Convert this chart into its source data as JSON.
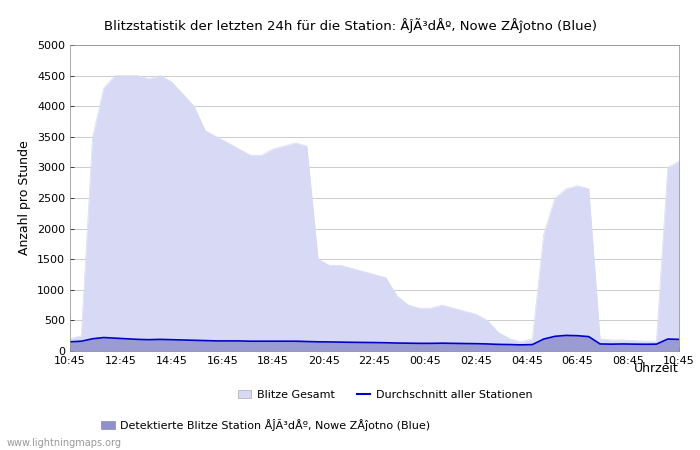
{
  "title": "Blitzstatistik der letzten 24h für die Station: ÅĴÃ³dÅº, Nowe ZÅĵotno (Blue)",
  "ylabel": "Anzahl pro Stunde",
  "xlabel": "Uhrzeit",
  "xtick_labels": [
    "10:45",
    "12:45",
    "14:45",
    "16:45",
    "18:45",
    "20:45",
    "22:45",
    "00:45",
    "02:45",
    "04:45",
    "06:45",
    "08:45",
    "10:45"
  ],
  "ytick_values": [
    0,
    500,
    1000,
    1500,
    2000,
    2500,
    3000,
    3500,
    4000,
    4500,
    5000
  ],
  "ylim": [
    0,
    5000
  ],
  "background_color": "#ffffff",
  "plot_bg_color": "#ffffff",
  "grid_color": "#cccccc",
  "fill_gesamt_color": "#d8daf5",
  "fill_station_color": "#9090cc",
  "line_color": "#0000cc",
  "watermark": "www.lightningmaps.org",
  "legend_entries": [
    "Blitze Gesamt",
    "Durchschnitt aller Stationen",
    "Detektierte Blitze Station ÅĴÃ³dÅº, Nowe ZÅĵotno (Blue)"
  ],
  "gesamt_y": [
    200,
    250,
    3500,
    4300,
    4500,
    4500,
    4500,
    4450,
    4500,
    4400,
    4200,
    4000,
    3600,
    3500,
    3400,
    3300,
    3200,
    3200,
    3300,
    3350,
    3400,
    3350,
    1500,
    1400,
    1400,
    1350,
    1300,
    1250,
    1200,
    900,
    750,
    700,
    700,
    750,
    700,
    650,
    600,
    500,
    300,
    200,
    150,
    200,
    1900,
    2500,
    2650,
    2700,
    2650,
    200,
    180,
    180,
    170,
    160,
    160,
    3000,
    3100
  ],
  "station_y": [
    150,
    160,
    200,
    220,
    210,
    200,
    190,
    185,
    190,
    185,
    180,
    175,
    170,
    165,
    165,
    165,
    160,
    160,
    160,
    160,
    160,
    155,
    150,
    148,
    145,
    142,
    140,
    138,
    135,
    130,
    128,
    125,
    125,
    128,
    125,
    122,
    120,
    115,
    108,
    105,
    100,
    105,
    195,
    240,
    255,
    250,
    235,
    115,
    112,
    115,
    112,
    110,
    112,
    195,
    190
  ],
  "avg_y": [
    150,
    160,
    200,
    220,
    210,
    200,
    190,
    185,
    190,
    185,
    180,
    175,
    170,
    165,
    165,
    165,
    160,
    160,
    160,
    160,
    160,
    155,
    150,
    148,
    145,
    142,
    140,
    138,
    135,
    130,
    128,
    125,
    125,
    128,
    125,
    122,
    120,
    115,
    108,
    105,
    100,
    105,
    195,
    240,
    255,
    250,
    235,
    115,
    112,
    115,
    112,
    110,
    112,
    195,
    190
  ]
}
